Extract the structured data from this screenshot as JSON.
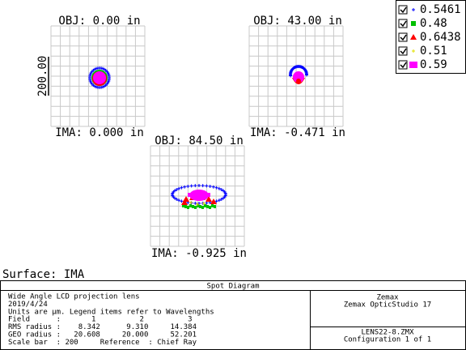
{
  "plots": [
    {
      "obj": "OBJ: 0.00 in",
      "ima": "IMA: 0.000 in"
    },
    {
      "obj": "OBJ: 43.00 in",
      "ima": "IMA: -0.471 in"
    },
    {
      "obj": "OBJ: 84.50 in",
      "ima": "IMA: -0.925 in"
    }
  ],
  "scale_bar": "200.00",
  "legend": [
    "0.5461",
    "0.48",
    "0.6438",
    "0.51",
    "0.59"
  ],
  "surface": "Surface: IMA",
  "footer": {
    "title": "Spot Diagram",
    "lines": [
      "Wide Angle LCD projection lens",
      "2019/4/24",
      "Units are µm. Legend items refer to Wavelengths",
      "Field      :       1          2          3",
      "RMS radius :    8.342      9.310     14.384",
      "GEO radius :   20.608     20.000     52.201",
      "Scale bar  : 200     Reference  : Chief Ray"
    ],
    "company": "Zemax",
    "product": "Zemax OpticStudio 17",
    "file": "LENS22-8.ZMX",
    "config": "Configuration 1 of 1"
  }
}
